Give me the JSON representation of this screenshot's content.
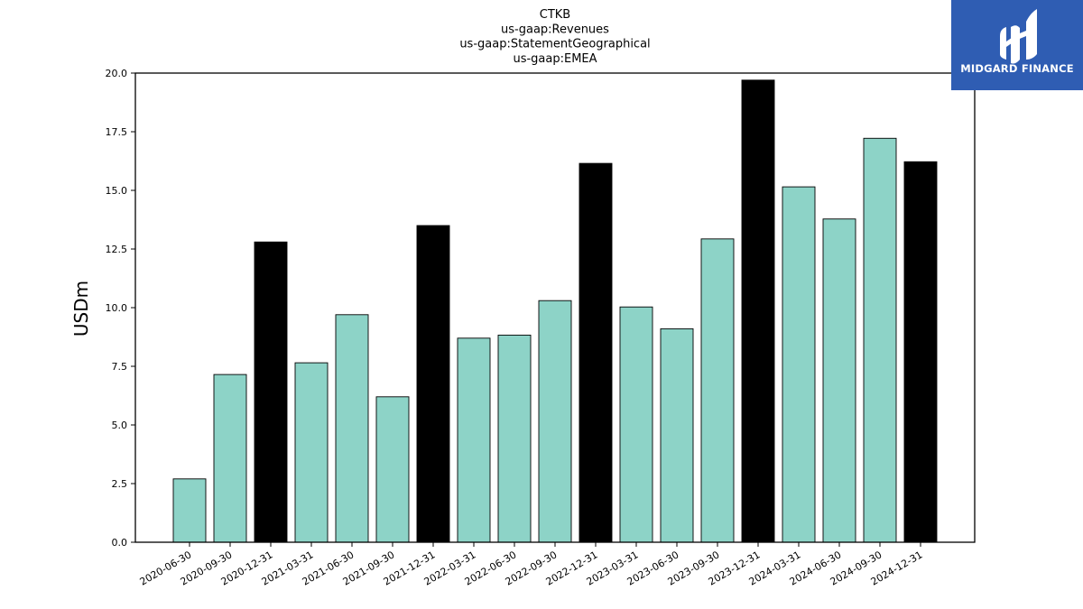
{
  "chart_data": {
    "type": "bar",
    "title_lines": [
      "CTKB",
      "us-gaap:Revenues",
      "us-gaap:StatementGeographical",
      "us-gaap:EMEA"
    ],
    "xlabel": "",
    "ylabel": "USDm",
    "ylim": [
      0,
      20
    ],
    "yticks": [
      "0.0",
      "2.5",
      "5.0",
      "7.5",
      "10.0",
      "12.5",
      "15.0",
      "17.5",
      "20.0"
    ],
    "grid": false,
    "categories": [
      "2020-06-30",
      "2020-09-30",
      "2020-12-31",
      "2021-03-31",
      "2021-06-30",
      "2021-09-30",
      "2021-12-31",
      "2022-03-31",
      "2022-06-30",
      "2022-09-30",
      "2022-12-31",
      "2023-03-31",
      "2023-06-30",
      "2023-09-30",
      "2023-12-31",
      "2024-03-31",
      "2024-06-30",
      "2024-09-30",
      "2024-12-31"
    ],
    "values": [
      2.7,
      7.15,
      12.8,
      7.65,
      9.7,
      6.2,
      13.5,
      8.7,
      8.83,
      10.3,
      16.15,
      10.03,
      9.1,
      12.93,
      19.7,
      15.15,
      13.78,
      17.22,
      16.22
    ],
    "colors": {
      "quarter": "#8dd3c7",
      "year_end": "#000000",
      "edge": "#000000"
    },
    "year_end_categories": [
      "2020-12-31",
      "2021-12-31",
      "2022-12-31",
      "2023-12-31",
      "2024-12-31"
    ]
  },
  "logo": {
    "text": "MIDGARD FINANCE",
    "icon": "midgard-logo-icon",
    "color": "#2f5db3"
  }
}
